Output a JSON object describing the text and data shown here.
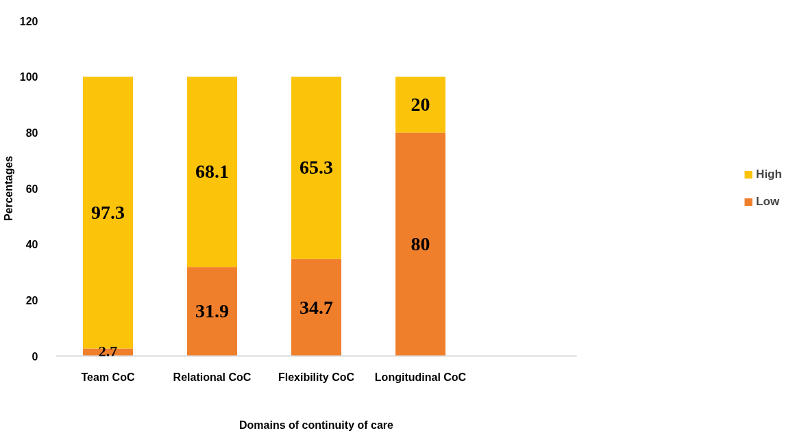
{
  "chart_data": {
    "type": "bar",
    "stacked": true,
    "xlabel": "Domains of continuity of care",
    "ylabel": "Percentages",
    "categories": [
      "Team CoC",
      "Relational CoC",
      "Flexibility CoC",
      "Longitudinal CoC",
      null
    ],
    "series": [
      {
        "name": "Low",
        "color": "#f07f2c",
        "values": [
          2.7,
          31.9,
          34.7,
          80,
          null
        ]
      },
      {
        "name": "High",
        "color": "#fcc30b",
        "values": [
          97.3,
          68.1,
          65.3,
          20,
          null
        ]
      }
    ],
    "ylim": [
      0,
      120
    ],
    "yticks": [
      0,
      20,
      40,
      60,
      80,
      100,
      120
    ],
    "data_labels": true,
    "grid": false,
    "legend": "right"
  }
}
